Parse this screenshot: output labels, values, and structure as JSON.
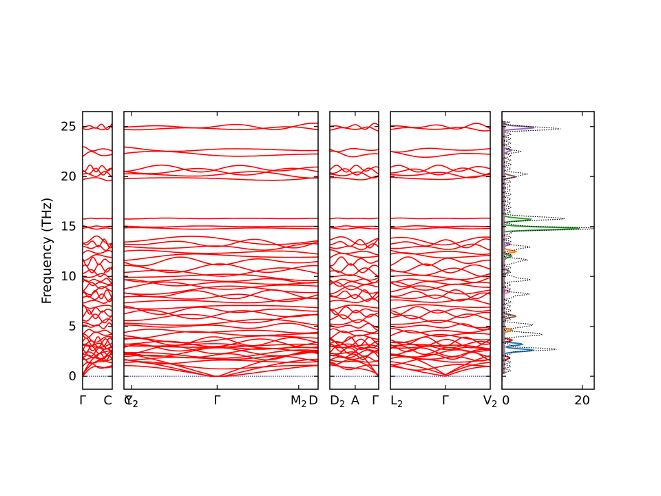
{
  "chart_data": {
    "type": "line",
    "ylabel": "Frequency (THz)",
    "ylim": [
      -1.3,
      26.5
    ],
    "yticks": [
      0,
      5,
      10,
      15,
      20,
      25
    ],
    "band_color": "#ff0000",
    "zero_line_color": "#00008b",
    "panels": [
      {
        "id": "p1",
        "x_ticks": [
          {
            "pos": 0.0,
            "label": "Γ",
            "sub": ""
          },
          {
            "pos": 1.0,
            "label": "C",
            "sub": ""
          }
        ]
      },
      {
        "id": "p2",
        "x_ticks": [
          {
            "pos": 0.0,
            "label": "C",
            "sub": "2"
          },
          {
            "pos": 0.04,
            "label": "Y",
            "sub": "2"
          },
          {
            "pos": 0.48,
            "label": "Γ",
            "sub": ""
          },
          {
            "pos": 0.9,
            "label": "M",
            "sub": "2"
          },
          {
            "pos": 1.0,
            "label": "D",
            "sub": ""
          }
        ]
      },
      {
        "id": "p3",
        "x_ticks": [
          {
            "pos": 0.0,
            "label": "D",
            "sub": "2"
          },
          {
            "pos": 0.52,
            "label": "A",
            "sub": ""
          },
          {
            "pos": 1.0,
            "label": "Γ",
            "sub": ""
          }
        ]
      },
      {
        "id": "p4",
        "x_ticks": [
          {
            "pos": 0.0,
            "label": "L",
            "sub": "2"
          },
          {
            "pos": 0.55,
            "label": "Γ",
            "sub": ""
          },
          {
            "pos": 1.0,
            "label": "V",
            "sub": "2"
          }
        ]
      }
    ],
    "bands_approx_thz": [
      1.0,
      1.5,
      1.8,
      2.0,
      2.2,
      2.4,
      2.6,
      2.8,
      3.0,
      3.1,
      3.3,
      3.5,
      3.8,
      4.2,
      4.5,
      5.0,
      5.3,
      5.8,
      6.2,
      6.6,
      7.0,
      7.5,
      7.9,
      8.2,
      8.6,
      9.0,
      9.3,
      9.6,
      10.0,
      10.4,
      10.8,
      11.5,
      12.0,
      12.4,
      12.9,
      13.3,
      13.6,
      14.8,
      15.0,
      15.8,
      19.8,
      20.2,
      20.5,
      20.8,
      22.2,
      22.7,
      24.8,
      25.0
    ],
    "dos": {
      "xlim": [
        0,
        23
      ],
      "xticks": [
        0,
        20
      ],
      "total_color": "#000000",
      "total_style": "dotted",
      "peaks": [
        {
          "freq": 2.7,
          "value": 11.5
        },
        {
          "freq": 4.2,
          "value": 9.5
        },
        {
          "freq": 5.1,
          "value": 7.0
        },
        {
          "freq": 8.2,
          "value": 5.0
        },
        {
          "freq": 9.7,
          "value": 5.5
        },
        {
          "freq": 11.6,
          "value": 5.0
        },
        {
          "freq": 12.9,
          "value": 5.5
        },
        {
          "freq": 14.8,
          "value": 22.0
        },
        {
          "freq": 15.8,
          "value": 15.0
        },
        {
          "freq": 20.2,
          "value": 5.0
        },
        {
          "freq": 22.5,
          "value": 2.5
        },
        {
          "freq": 24.8,
          "value": 13.5
        }
      ],
      "partials": [
        {
          "color": "#1f77b4",
          "peaks": [
            {
              "freq": 2.6,
              "value": 7.5
            },
            {
              "freq": 3.2,
              "value": 4.5
            }
          ]
        },
        {
          "color": "#ff7f0e",
          "peaks": [
            {
              "freq": 12.5,
              "value": 3.0
            },
            {
              "freq": 4.6,
              "value": 2.0
            }
          ]
        },
        {
          "color": "#2ca02c",
          "peaks": [
            {
              "freq": 14.8,
              "value": 19.0
            },
            {
              "freq": 15.7,
              "value": 7.0
            },
            {
              "freq": 12.0,
              "value": 2.0
            }
          ]
        },
        {
          "color": "#d62728",
          "peaks": [
            {
              "freq": 3.6,
              "value": 2.0
            },
            {
              "freq": 1.8,
              "value": 1.5
            }
          ]
        },
        {
          "color": "#9467bd",
          "peaks": [
            {
              "freq": 24.9,
              "value": 7.5
            },
            {
              "freq": 22.6,
              "value": 2.0
            },
            {
              "freq": 13.2,
              "value": 1.5
            }
          ]
        },
        {
          "color": "#8c564b",
          "peaks": [
            {
              "freq": 6.0,
              "value": 3.0
            },
            {
              "freq": 20.0,
              "value": 3.0
            }
          ]
        },
        {
          "color": "#e377c2",
          "peaks": [
            {
              "freq": 8.5,
              "value": 1.5
            }
          ]
        },
        {
          "color": "#7f7f7f",
          "peaks": [
            {
              "freq": 10.5,
              "value": 1.5
            }
          ]
        }
      ]
    }
  }
}
